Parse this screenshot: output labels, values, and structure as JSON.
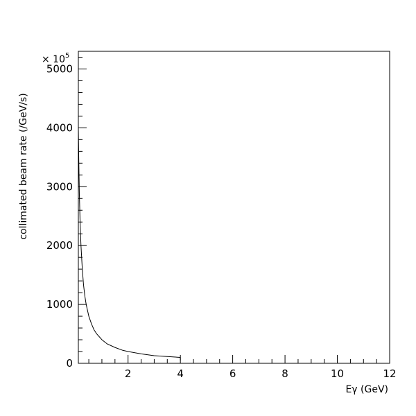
{
  "chart_data": {
    "type": "line",
    "title": "",
    "xlabel": "Eγ (GeV)",
    "ylabel": "collimated beam rate (/GeV/s)",
    "y_multiplier": "× 10",
    "y_multiplier_exp": "5",
    "xlim": [
      0.1,
      12
    ],
    "ylim": [
      0,
      5300
    ],
    "x_ticks": [
      2,
      4,
      6,
      8,
      10,
      12
    ],
    "y_ticks": [
      0,
      1000,
      2000,
      3000,
      4000,
      5000
    ],
    "grid": false,
    "legend": "none",
    "line_color": "#000000",
    "series": [
      {
        "x": [
          0.1,
          0.12,
          0.14,
          0.17,
          0.2,
          0.25,
          0.3,
          0.35,
          0.4,
          0.5,
          0.6,
          0.7,
          0.8,
          1.0,
          1.2,
          1.5,
          1.8,
          2.0,
          2.5,
          3.0,
          3.5,
          4.0
        ],
        "y": [
          4000,
          3330,
          2860,
          2350,
          2000,
          1600,
          1330,
          1140,
          1000,
          800,
          670,
          570,
          500,
          400,
          330,
          270,
          220,
          200,
          160,
          130,
          114,
          100
        ]
      }
    ],
    "end_drop": {
      "x": 4.0,
      "from": 100,
      "to": 50
    }
  }
}
